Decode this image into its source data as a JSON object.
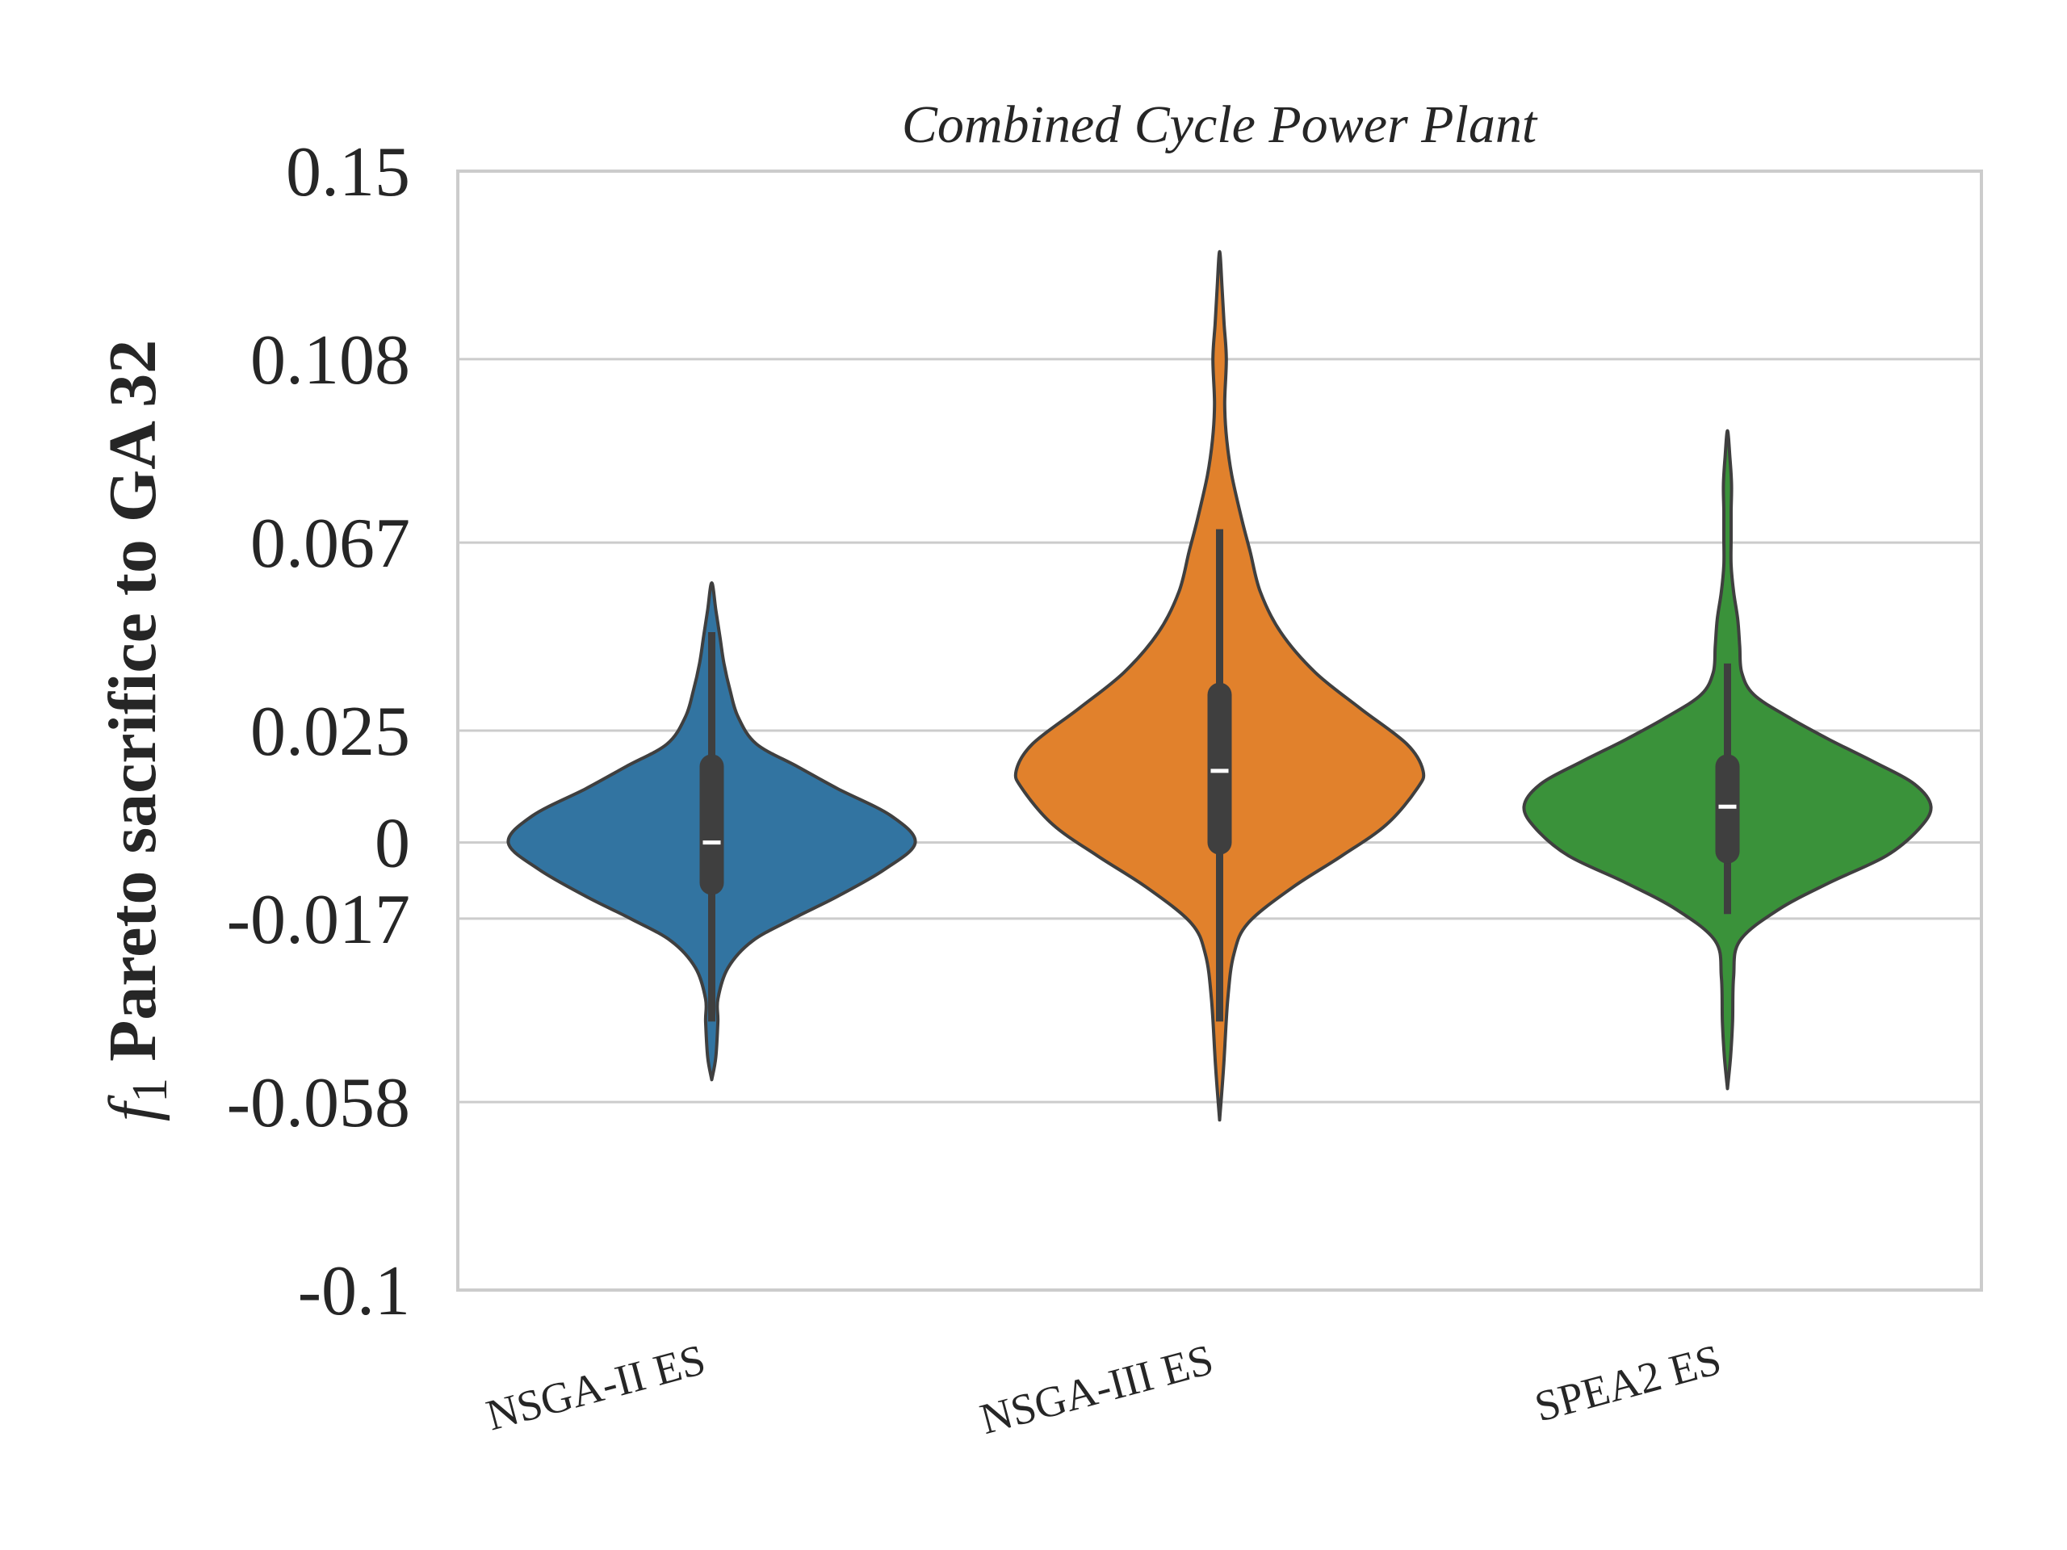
{
  "chart_data": {
    "type": "violin",
    "title": "Combined Cycle Power Plant",
    "ylabel": {
      "symbol": "f",
      "subscript": "1",
      "text": "Pareto sacrifice to GA 32"
    },
    "ylim": [
      -0.1,
      0.15
    ],
    "yticks": [
      {
        "value": 0.15,
        "label": "0.15"
      },
      {
        "value": 0.108,
        "label": "0.108"
      },
      {
        "value": 0.067,
        "label": "0.067"
      },
      {
        "value": 0.025,
        "label": "0.025"
      },
      {
        "value": 0,
        "label": "0"
      },
      {
        "value": -0.017,
        "label": "-0.017"
      },
      {
        "value": -0.058,
        "label": "-0.058"
      },
      {
        "value": -0.1,
        "label": "-0.1"
      }
    ],
    "grid": "horizontal",
    "categories": [
      "NSGA-II ES",
      "NSGA-III ES",
      "SPEA2 ES"
    ],
    "series": [
      {
        "category": "NSGA-II ES",
        "color": "#3274a1",
        "median": 0.0,
        "q1": -0.009,
        "q3": 0.017,
        "whisker_low": -0.04,
        "whisker_high": 0.047,
        "density": [
          [
            -0.053,
            0.0
          ],
          [
            -0.048,
            0.02
          ],
          [
            -0.04,
            0.03
          ],
          [
            -0.035,
            0.03
          ],
          [
            -0.028,
            0.08
          ],
          [
            -0.022,
            0.2
          ],
          [
            -0.017,
            0.4
          ],
          [
            -0.012,
            0.62
          ],
          [
            -0.006,
            0.85
          ],
          [
            0.0,
            1.0
          ],
          [
            0.006,
            0.88
          ],
          [
            0.012,
            0.62
          ],
          [
            0.017,
            0.42
          ],
          [
            0.022,
            0.22
          ],
          [
            0.028,
            0.13
          ],
          [
            0.034,
            0.09
          ],
          [
            0.04,
            0.06
          ],
          [
            0.046,
            0.04
          ],
          [
            0.052,
            0.02
          ],
          [
            0.058,
            0.0
          ]
        ]
      },
      {
        "category": "NSGA-III ES",
        "color": "#e1812c",
        "median": 0.016,
        "q1": 0.0,
        "q3": 0.033,
        "whisker_low": -0.04,
        "whisker_high": 0.07,
        "density": [
          [
            -0.062,
            0.0
          ],
          [
            -0.05,
            0.02
          ],
          [
            -0.035,
            0.04
          ],
          [
            -0.025,
            0.07
          ],
          [
            -0.018,
            0.14
          ],
          [
            -0.01,
            0.36
          ],
          [
            -0.003,
            0.6
          ],
          [
            0.004,
            0.82
          ],
          [
            0.012,
            0.97
          ],
          [
            0.016,
            1.0
          ],
          [
            0.022,
            0.92
          ],
          [
            0.03,
            0.69
          ],
          [
            0.038,
            0.47
          ],
          [
            0.047,
            0.3
          ],
          [
            0.056,
            0.2
          ],
          [
            0.065,
            0.15
          ],
          [
            0.072,
            0.11
          ],
          [
            0.082,
            0.06
          ],
          [
            0.09,
            0.035
          ],
          [
            0.098,
            0.025
          ],
          [
            0.108,
            0.033
          ],
          [
            0.116,
            0.022
          ],
          [
            0.124,
            0.012
          ],
          [
            0.132,
            0.0
          ]
        ]
      },
      {
        "category": "SPEA2 ES",
        "color": "#3a923a",
        "median": 0.008,
        "q1": -0.002,
        "q3": 0.017,
        "whisker_low": -0.016,
        "whisker_high": 0.04,
        "density": [
          [
            -0.055,
            0.0
          ],
          [
            -0.048,
            0.015
          ],
          [
            -0.04,
            0.025
          ],
          [
            -0.03,
            0.03
          ],
          [
            -0.022,
            0.06
          ],
          [
            -0.015,
            0.25
          ],
          [
            -0.009,
            0.5
          ],
          [
            -0.003,
            0.78
          ],
          [
            0.003,
            0.94
          ],
          [
            0.008,
            1.0
          ],
          [
            0.013,
            0.92
          ],
          [
            0.018,
            0.72
          ],
          [
            0.023,
            0.5
          ],
          [
            0.028,
            0.3
          ],
          [
            0.033,
            0.13
          ],
          [
            0.038,
            0.07
          ],
          [
            0.044,
            0.06
          ],
          [
            0.05,
            0.05
          ],
          [
            0.056,
            0.03
          ],
          [
            0.062,
            0.018
          ],
          [
            0.068,
            0.018
          ],
          [
            0.074,
            0.018
          ],
          [
            0.08,
            0.02
          ],
          [
            0.086,
            0.012
          ],
          [
            0.092,
            0.0
          ]
        ]
      }
    ]
  }
}
